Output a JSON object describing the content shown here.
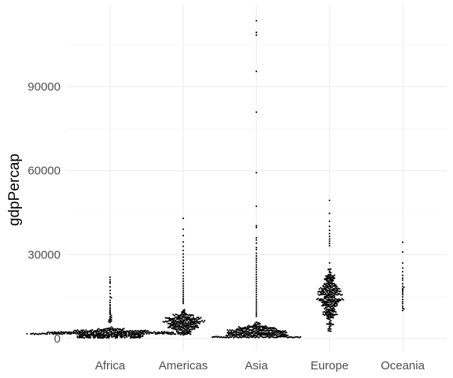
{
  "chart_data": {
    "type": "scatter",
    "subtype": "beeswarm",
    "title": "",
    "xlabel": "",
    "ylabel": "gdpPercap",
    "categories": [
      "Africa",
      "Americas",
      "Asia",
      "Europe",
      "Oceania"
    ],
    "ylim": [
      -4000,
      118000
    ],
    "yticks": [
      0,
      30000,
      60000,
      90000
    ],
    "ytick_labels": [
      "0",
      "30000",
      "60000",
      "90000"
    ],
    "grid": true,
    "legend": "none",
    "point_color": "#000000",
    "groups": [
      {
        "name": "Africa",
        "n": 624,
        "values": [
          21951,
          21011,
          20300,
          19800,
          18500,
          17200,
          16100,
          14900,
          14600,
          13700,
          12900,
          12100,
          11700,
          11000,
          10500,
          9900,
          9500,
          9100,
          8700,
          8300,
          7900,
          7600,
          7300,
          7000,
          6800,
          6600,
          6400,
          6200,
          6000,
          5800
        ]
      },
      {
        "name": "Americas",
        "n": 300,
        "values": [
          42952,
          39100,
          36800,
          34500,
          33000,
          31500,
          30200,
          29100,
          28000,
          26900,
          25800,
          24700,
          23500,
          22400,
          21400,
          20500,
          19600,
          18800,
          18000,
          17200,
          16500,
          15800,
          15100,
          14400,
          13800,
          13200,
          12600
        ]
      },
      {
        "name": "Asia",
        "n": 396,
        "values": [
          113523,
          109348,
          108382,
          95458,
          80894,
          59265,
          47307,
          40300,
          39700,
          36000,
          35200,
          34100,
          32500,
          31800,
          30500,
          29500,
          28700,
          28000,
          27200,
          26300,
          25500,
          24700,
          23800,
          22900,
          22000,
          21200,
          20400,
          19600,
          18800,
          18000,
          17300,
          16500,
          15700,
          14900,
          14100,
          13400,
          12700,
          12000,
          11300,
          10600,
          9900,
          9200,
          8600,
          8000
        ]
      },
      {
        "name": "Europe",
        "n": 360,
        "values": [
          49357,
          44684,
          41900,
          40100,
          38700,
          37500,
          36500,
          35600,
          34800,
          34000,
          33200
        ]
      },
      {
        "name": "Oceania",
        "n": 24,
        "values": [
          34435,
          30900,
          27000,
          25200,
          23900,
          22600,
          21600,
          20900,
          19600,
          18700,
          18300,
          17800,
          17400,
          16900,
          16300,
          15700,
          14900,
          14000,
          13200,
          12500,
          11600,
          10900,
          10600,
          10040
        ]
      }
    ]
  }
}
